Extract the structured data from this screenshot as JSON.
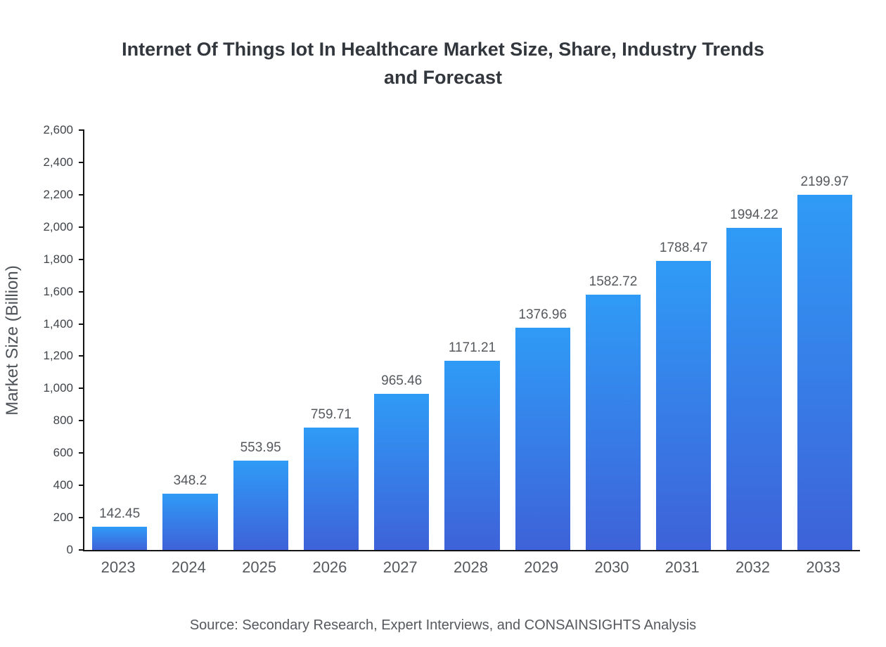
{
  "chart_data": {
    "type": "bar",
    "title": "Internet Of Things Iot In Healthcare Market Size, Share, Industry Trends and Forecast",
    "ylabel": "Market Size (Billion)",
    "xlabel": "",
    "categories": [
      "2023",
      "2024",
      "2025",
      "2026",
      "2027",
      "2028",
      "2029",
      "2030",
      "2031",
      "2032",
      "2033"
    ],
    "values": [
      142.45,
      348.2,
      553.95,
      759.71,
      965.46,
      1171.21,
      1376.96,
      1582.72,
      1788.47,
      1994.22,
      2199.97
    ],
    "ylim": [
      0,
      2600
    ],
    "ytick_step": 200,
    "grid": false,
    "legend": "none",
    "bar_color_top": "#2f9bf6",
    "bar_color_bottom": "#3e62d9",
    "axis_color": "#141414",
    "source": "Source: Secondary Research, Expert Interviews, and CONSAINSIGHTS Analysis"
  }
}
